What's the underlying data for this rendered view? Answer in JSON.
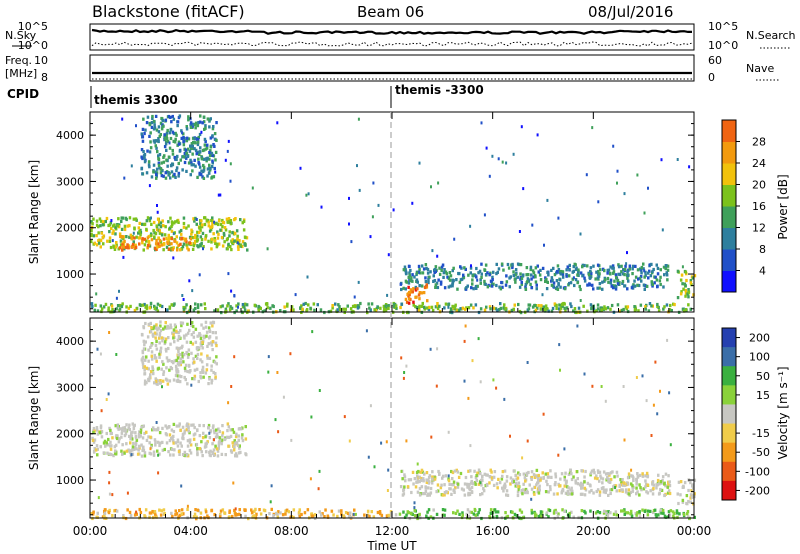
{
  "header": {
    "site": "Blackstone (fitACF)",
    "beam": "Beam 06",
    "date": "08/Jul/2016"
  },
  "top_panels": {
    "nsky_label": "N.Sky",
    "nsearch_label": "N.Search",
    "counts_ticks": [
      "10^5",
      "10^0"
    ],
    "freq_label": "Freq.",
    "freq_unit": "[MHz]",
    "freq_ticks": [
      "10",
      "8"
    ],
    "nave_label": "Nave",
    "nave_ticks": [
      "60",
      "0"
    ],
    "cpid_label": "CPID",
    "cpid_segments": [
      "themis 3300",
      "themis -3300"
    ]
  },
  "chart_data": [
    {
      "type": "heatmap",
      "title": "Power",
      "ylabel": "Slant Range [km]",
      "y_ticks": [
        1000,
        2000,
        3000,
        4000
      ],
      "ylim": [
        180,
        4500
      ],
      "xlim": [
        0,
        24
      ],
      "colorbar": {
        "label": "Power [dB]",
        "ticks": [
          4,
          8,
          12,
          16,
          20,
          24,
          28
        ],
        "range": [
          0,
          32
        ]
      },
      "regions": [
        {
          "t": [
            0.0,
            6.2
          ],
          "r": [
            1550,
            2250
          ],
          "value": 18
        },
        {
          "t": [
            1.0,
            4.0
          ],
          "r": [
            1550,
            1850
          ],
          "value": 27
        },
        {
          "t": [
            2.0,
            5.0
          ],
          "r": [
            3100,
            4450
          ],
          "value": 11
        },
        {
          "t": [
            0.0,
            24.0
          ],
          "r": [
            200,
            400
          ],
          "value": 16
        },
        {
          "t": [
            12.3,
            23.0
          ],
          "r": [
            700,
            1250
          ],
          "value": 11
        },
        {
          "t": [
            12.5,
            13.5
          ],
          "r": [
            400,
            800
          ],
          "value": 29
        },
        {
          "t": [
            23.3,
            24.0
          ],
          "r": [
            500,
            1100
          ],
          "value": 18
        }
      ]
    },
    {
      "type": "heatmap",
      "title": "Velocity",
      "ylabel": "Slant Range [km]",
      "y_ticks": [
        1000,
        2000,
        3000,
        4000
      ],
      "ylim": [
        180,
        4500
      ],
      "xlim": [
        0,
        24
      ],
      "xlabel": "Time UT",
      "x_ticks": [
        "00:00",
        "04:00",
        "08:00",
        "12:00",
        "16:00",
        "20:00",
        "00:00"
      ],
      "colorbar": {
        "label": "Velocity [m s⁻¹]",
        "ticks": [
          200,
          100,
          50,
          15,
          -15,
          -50,
          -100,
          -200
        ]
      },
      "regions": [
        {
          "t": [
            0.0,
            6.2
          ],
          "r": [
            1550,
            2250
          ],
          "value": 0
        },
        {
          "t": [
            2.0,
            5.0
          ],
          "r": [
            3100,
            4450
          ],
          "value": 0
        },
        {
          "t": [
            0.0,
            12.0
          ],
          "r": [
            200,
            400
          ],
          "value": -30
        },
        {
          "t": [
            12.0,
            24.0
          ],
          "r": [
            200,
            400
          ],
          "value": 30
        },
        {
          "t": [
            12.3,
            23.0
          ],
          "r": [
            700,
            1250
          ],
          "value": 0
        },
        {
          "t": [
            23.3,
            24.0
          ],
          "r": [
            500,
            1100
          ],
          "value": 0
        }
      ]
    }
  ]
}
